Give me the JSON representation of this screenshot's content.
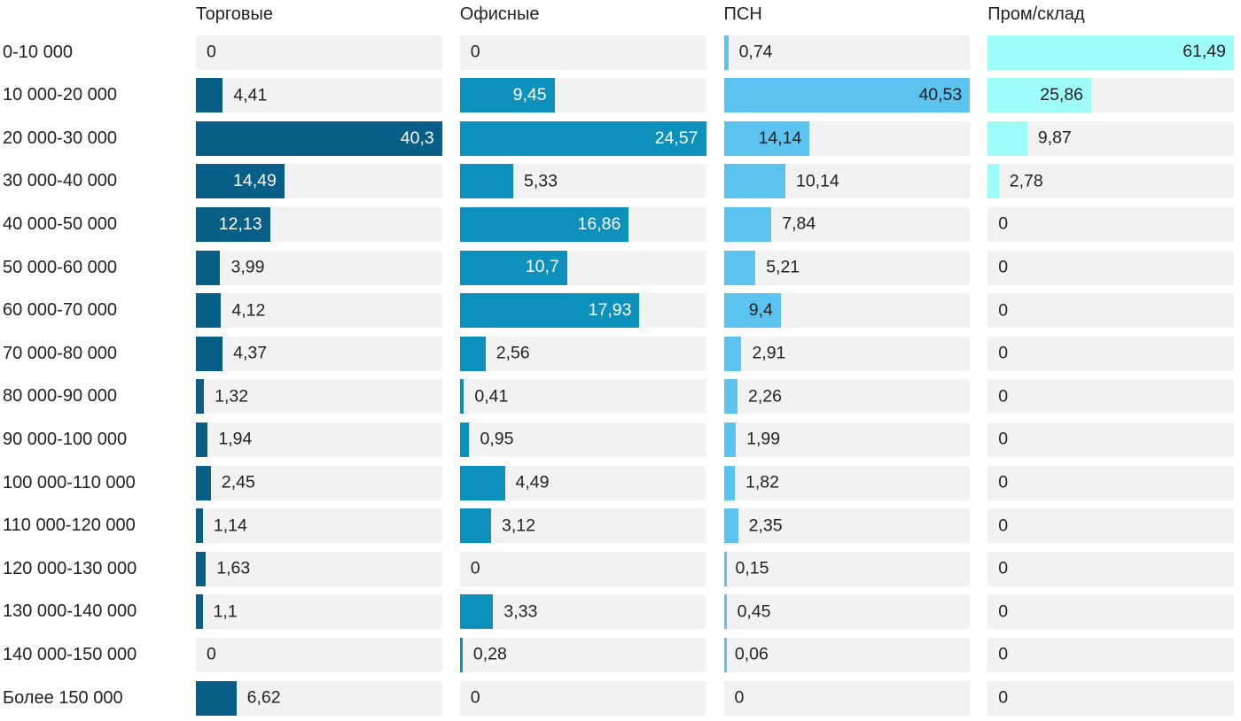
{
  "chart_data": {
    "type": "bar",
    "orientation": "horizontal",
    "value_format": "comma-decimal",
    "scaling": "each series scaled to its own max value",
    "categories": [
      "0-10 000",
      "10 000-20 000",
      "20 000-30 000",
      "30 000-40 000",
      "40 000-50 000",
      "50 000-60 000",
      "60 000-70 000",
      "70 000-80 000",
      "80 000-90 000",
      "90 000-100 000",
      "100 000-110 000",
      "110 000-120 000",
      "120 000-130 000",
      "130 000-140 000",
      "140 000-150 000",
      "Более 150 000"
    ],
    "series": [
      {
        "name": "Торговые",
        "color": "#075e87",
        "inside_label_color": "#ffffff",
        "values": [
          0,
          4.41,
          40.3,
          14.49,
          12.13,
          3.99,
          4.12,
          4.37,
          1.32,
          1.94,
          2.45,
          1.14,
          1.63,
          1.1,
          0,
          6.62
        ]
      },
      {
        "name": "Офисные",
        "color": "#0c90bc",
        "inside_label_color": "#ffffff",
        "values": [
          0,
          9.45,
          24.57,
          5.33,
          16.86,
          10.7,
          17.93,
          2.56,
          0.41,
          0.95,
          4.49,
          3.12,
          0,
          3.33,
          0.28,
          0
        ]
      },
      {
        "name": "ПСН",
        "color": "#5bc3f0",
        "inside_label_color": "#222222",
        "values": [
          0.74,
          40.53,
          14.14,
          10.14,
          7.84,
          5.21,
          9.4,
          2.91,
          2.26,
          1.99,
          1.82,
          2.35,
          0.15,
          0.45,
          0.06,
          0
        ]
      },
      {
        "name": "Пром/склад",
        "color": "#9dfbf8",
        "inside_label_color": "#222222",
        "values": [
          61.49,
          25.86,
          9.87,
          2.78,
          0,
          0,
          0,
          0,
          0,
          0,
          0,
          0,
          0,
          0,
          0,
          0
        ]
      }
    ],
    "track_color": "#f2f2f2",
    "label_color": "#222222",
    "grid": false,
    "legend_position": "column-headers"
  }
}
